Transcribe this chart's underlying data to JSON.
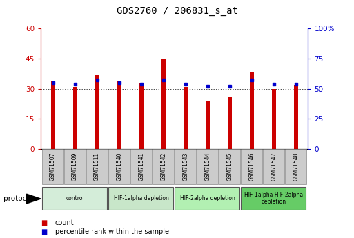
{
  "title": "GDS2760 / 206831_s_at",
  "samples": [
    "GSM71507",
    "GSM71509",
    "GSM71511",
    "GSM71540",
    "GSM71541",
    "GSM71542",
    "GSM71543",
    "GSM71544",
    "GSM71545",
    "GSM71546",
    "GSM71547",
    "GSM71548"
  ],
  "counts": [
    34,
    31,
    37,
    34,
    33,
    45,
    31,
    24,
    26,
    38,
    30,
    32
  ],
  "percentile_ranks": [
    55,
    54,
    57,
    55,
    54,
    57,
    54,
    52,
    52,
    57,
    54,
    54
  ],
  "groups": [
    {
      "label": "control",
      "start": 0,
      "end": 3,
      "color": "#d4edd9"
    },
    {
      "label": "HIF-1alpha depletion",
      "start": 3,
      "end": 6,
      "color": "#c8e6c9"
    },
    {
      "label": "HIF-2alpha depletion",
      "start": 6,
      "end": 9,
      "color": "#b2f0b2"
    },
    {
      "label": "HIF-1alpha HIF-2alpha\ndepletion",
      "start": 9,
      "end": 12,
      "color": "#66cc66"
    }
  ],
  "ylim_left": [
    0,
    60
  ],
  "ylim_right": [
    0,
    100
  ],
  "yticks_left": [
    0,
    15,
    30,
    45,
    60
  ],
  "yticks_right": [
    0,
    25,
    50,
    75,
    100
  ],
  "ytick_labels_right": [
    "0",
    "25",
    "50",
    "75",
    "100%"
  ],
  "bar_color": "#cc0000",
  "dot_color": "#0000cc",
  "grid_color": "#000000",
  "title_color": "#000000",
  "left_tick_color": "#cc0000",
  "right_tick_color": "#0000cc",
  "legend_count_color": "#cc0000",
  "legend_pct_color": "#0000cc",
  "bar_width": 0.18,
  "protocol_label": "protocol",
  "legend_count_label": "count",
  "legend_pct_label": "percentile rank within the sample",
  "fig_bg": "#ffffff",
  "plot_bg": "#ffffff",
  "xlabel_bg": "#cccccc",
  "figsize": [
    5.13,
    3.45
  ],
  "dpi": 100
}
